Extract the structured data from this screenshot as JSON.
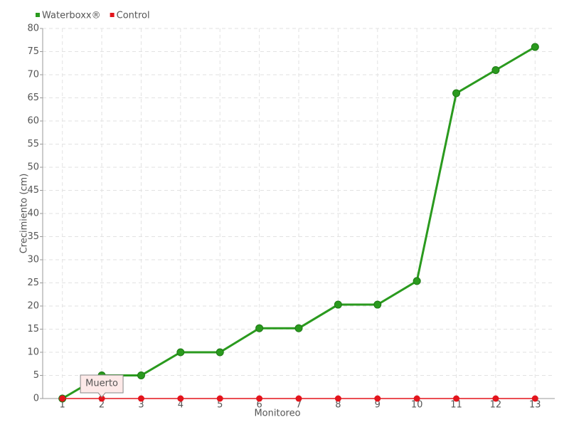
{
  "chart_data": {
    "type": "line",
    "categories": [
      "1",
      "2",
      "3",
      "4",
      "5",
      "6",
      "7",
      "8",
      "9",
      "10",
      "11",
      "12",
      "13"
    ],
    "series": [
      {
        "name": "Waterboxx®",
        "color": "#2a9a1e",
        "values": [
          0,
          5,
          5,
          10,
          10,
          15.2,
          15.2,
          20.3,
          20.3,
          25.4,
          66,
          71,
          76
        ]
      },
      {
        "name": "Control",
        "color": "#e3141c",
        "values": [
          0,
          0,
          0,
          0,
          0,
          0,
          0,
          0,
          0,
          0,
          0,
          0,
          0
        ]
      }
    ],
    "x_label": "Monitoreo",
    "y_label": "Crecimiento (cm)",
    "ylim": [
      0,
      80
    ],
    "yticks": [
      0,
      5,
      10,
      15,
      20,
      25,
      30,
      35,
      40,
      45,
      50,
      55,
      60,
      65,
      70,
      75,
      80
    ],
    "grid": true,
    "legend": "top-left",
    "tooltip": "Muerto"
  }
}
